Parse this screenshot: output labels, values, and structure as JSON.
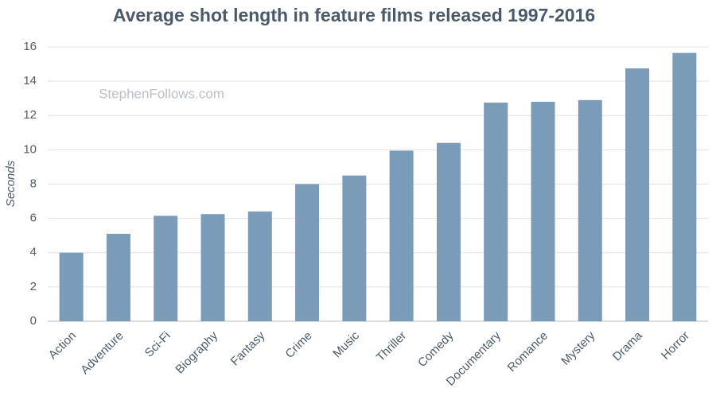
{
  "chart_data": {
    "type": "bar",
    "title": "Average shot length in feature films released 1997-2016",
    "watermark": "StephenFollows.com",
    "y_label": "Seconds",
    "categories": [
      "Action",
      "Adventure",
      "Sci-Fi",
      "Biography",
      "Fantasy",
      "Crime",
      "Music",
      "Thriller",
      "Comedy",
      "Documentary",
      "Romance",
      "Mystery",
      "Drama",
      "Horror"
    ],
    "values": [
      4.0,
      5.1,
      6.15,
      6.25,
      6.4,
      8.0,
      8.5,
      9.95,
      10.4,
      12.75,
      12.8,
      12.9,
      14.75,
      15.65
    ],
    "color": "#7a9cb8",
    "ylim": [
      0,
      16
    ],
    "yticks": [
      0,
      2,
      4,
      6,
      8,
      10,
      12,
      14,
      16
    ],
    "grid": true
  }
}
